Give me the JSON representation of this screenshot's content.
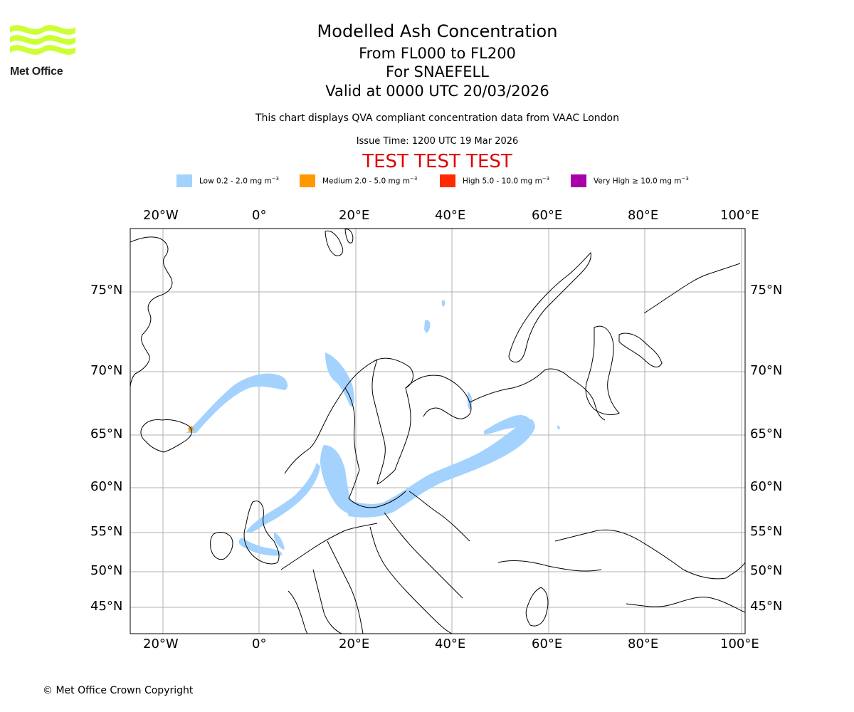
{
  "logo": {
    "text": "Met Office",
    "icon": "met-office-wave-logo",
    "color": "#ccff33"
  },
  "title": {
    "main": "Modelled Ash Concentration",
    "levels": "From FL000 to FL200",
    "volcano": "For SNAEFELL",
    "valid": "Valid at 0000 UTC 20/03/2026"
  },
  "subtitle": {
    "description": "This chart displays QVA compliant concentration data from VAAC London",
    "issue_time": "Issue Time: 1200 UTC 19 Mar 2026"
  },
  "test_banner": "TEST TEST TEST",
  "legend": [
    {
      "label": "Low 0.2 - 2.0 mg m",
      "color": "#a3d2fe"
    },
    {
      "label": "Medium 2.0 - 5.0 mg m",
      "color": "#ff9900"
    },
    {
      "label": "High 5.0 - 10.0 mg m",
      "color": "#ff2a00"
    },
    {
      "label": "Very High  ≥  10.0 mg m",
      "color": "#aa00aa"
    }
  ],
  "legend_unit_exp": "−3",
  "axes": {
    "lon_ticks": [
      "20°W",
      "0°",
      "20°E",
      "40°E",
      "60°E",
      "80°E",
      "100°E"
    ],
    "lat_ticks": [
      "75°N",
      "70°N",
      "65°N",
      "60°N",
      "55°N",
      "50°N",
      "45°N"
    ]
  },
  "copyright": "© Met Office Crown Copyright"
}
